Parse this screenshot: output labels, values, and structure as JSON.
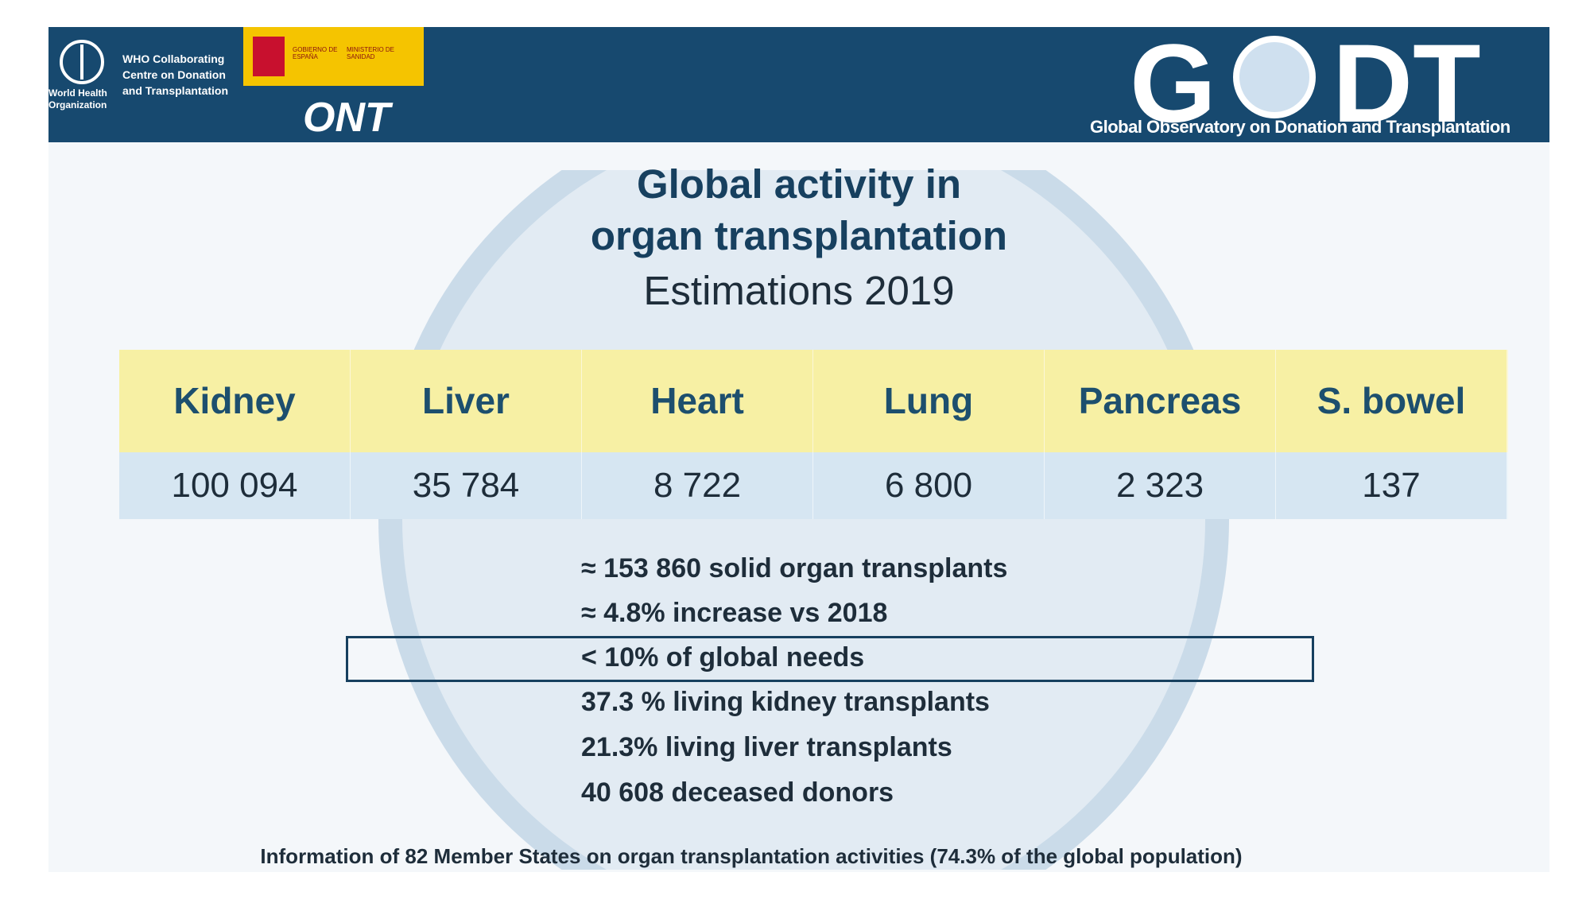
{
  "header": {
    "who_name": "World Health Organization",
    "who_centre": [
      "WHO Collaborating",
      "Centre on Donation",
      "and Transplantation"
    ],
    "spain_gov": "GOBIERNO DE ESPAÑA",
    "spain_ministry": "MINISTERIO DE SANIDAD",
    "ont": "ONT",
    "godt_left": "G",
    "godt_right": "DT",
    "godt_subtitle": "Global Observatory on Donation and Transplantation"
  },
  "title": [
    "Global activity in",
    "organ transplantation"
  ],
  "subtitle": "Estimations 2019",
  "table": {
    "headers": [
      "Kidney",
      "Liver",
      "Heart",
      "Lung",
      "Pancreas",
      "S. bowel"
    ],
    "values": [
      "100 094",
      "35 784",
      "8 722",
      "6 800",
      "2 323",
      "137"
    ]
  },
  "bullets": [
    "≈ 153 860 solid organ transplants",
    "≈ 4.8% increase vs 2018",
    "< 10% of global needs",
    "37.3 % living kidney transplants",
    "21.3% living liver transplants",
    "40 608 deceased donors"
  ],
  "footer": "Information of 82 Member States on organ transplantation activities (74.3% of the global population)"
}
